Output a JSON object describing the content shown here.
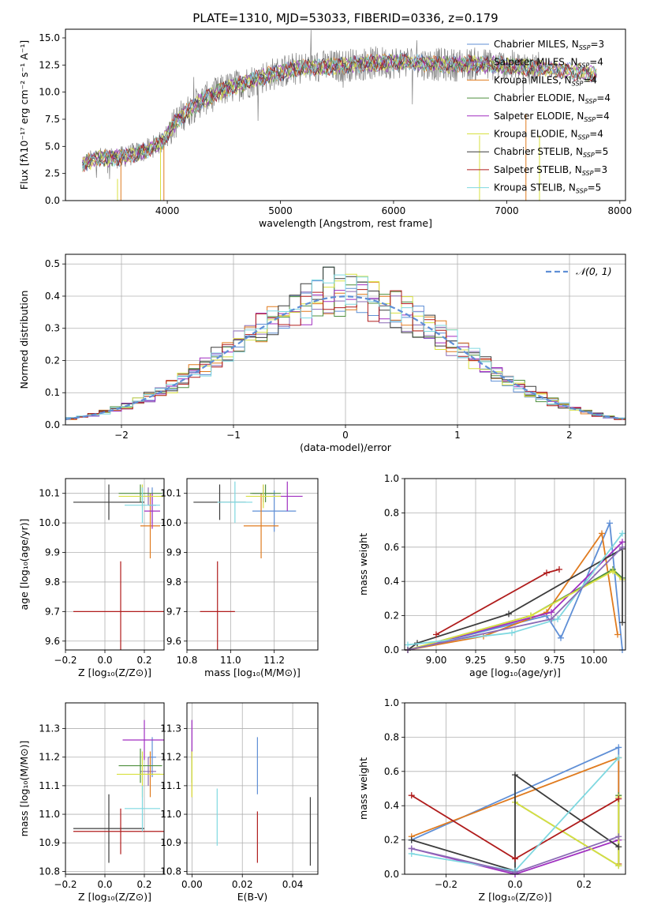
{
  "figure_title": "PLATE=1310, MJD=53033, FIBERID=0336, z=0.179",
  "series_colors": {
    "Chabrier MILES": "#5f8fd6",
    "Salpeter MILES": "#8b6bb5",
    "Kroupa MILES": "#e07b1f",
    "Chabrier ELODIE": "#4f8f3f",
    "Salpeter ELODIE": "#a02fc0",
    "Kroupa ELODIE": "#d8e040",
    "Chabrier STELIB": "#3c3c3c",
    "Salpeter STELIB": "#b01c1c",
    "Kroupa STELIB": "#7fd8e0"
  },
  "chart_data": [
    {
      "id": "spectrum",
      "type": "line",
      "xlabel": "wavelength [Angstrom, rest frame]",
      "ylabel": "Flux [fλ10⁻¹⁷ erg cm⁻² s⁻¹ A⁻¹]",
      "xlim": [
        3100,
        8050
      ],
      "ylim": [
        0,
        15.8
      ],
      "xticks": [
        "4000",
        "5000",
        "6000",
        "7000",
        "8000"
      ],
      "yticks": [
        "0.0",
        "2.5",
        "5.0",
        "7.5",
        "10.0",
        "12.5",
        "15.0"
      ],
      "grid": false,
      "legend_position": "top-right",
      "legend": [
        {
          "name": "Chabrier MILES",
          "nssp": "3"
        },
        {
          "name": "Salpeter MILES",
          "nssp": "4"
        },
        {
          "name": "Kroupa MILES",
          "nssp": "4"
        },
        {
          "name": "Chabrier ELODIE",
          "nssp": "4"
        },
        {
          "name": "Salpeter ELODIE",
          "nssp": "4"
        },
        {
          "name": "Kroupa ELODIE",
          "nssp": "4"
        },
        {
          "name": "Chabrier STELIB",
          "nssp": "5"
        },
        {
          "name": "Salpeter STELIB",
          "nssp": "3"
        },
        {
          "name": "Kroupa STELIB",
          "nssp": "5"
        }
      ],
      "legend_suffix": "SSP",
      "observed_color": "#808080",
      "observed_range": [
        3250,
        7300
      ],
      "continuum": {
        "x": [
          3250,
          3400,
          3600,
          3800,
          3950,
          4100,
          4300,
          4500,
          4700,
          4900,
          5100,
          5300,
          5500,
          5700,
          5900,
          6100,
          6300,
          6500,
          6700,
          6900,
          7100,
          7300,
          7500,
          7800
        ],
        "y": [
          3.4,
          3.9,
          4.0,
          4.6,
          5.4,
          7.6,
          9.2,
          10.2,
          10.9,
          11.6,
          12.1,
          12.3,
          12.4,
          12.6,
          12.7,
          12.8,
          12.6,
          12.5,
          12.6,
          12.5,
          12.3,
          12.2,
          12.0,
          11.6
        ]
      },
      "model_range": [
        3250,
        7800
      ]
    },
    {
      "id": "residual_hist",
      "type": "histogram",
      "xlabel": "(data-model)/error",
      "ylabel": "Normed distribution",
      "xlim": [
        -2.5,
        2.5
      ],
      "ylim": [
        0,
        0.53
      ],
      "xticks": [
        "−2",
        "−1",
        "0",
        "1",
        "2"
      ],
      "yticks": [
        "0.0",
        "0.1",
        "0.2",
        "0.3",
        "0.4",
        "0.5"
      ],
      "grid": true,
      "legend_position": "top-right",
      "reference_curve": {
        "label": "𝒩(0, 1)",
        "mean": 0,
        "sigma": 1,
        "color": "#5f8fd6"
      },
      "bin_width": 0.1
    },
    {
      "id": "age_vs_z",
      "type": "errorbar",
      "xlabel": "Z [log₁₀(Z/Z⊙)]",
      "ylabel": "age  [log₁₀(age/yr)]",
      "xlim": [
        -0.2,
        0.3
      ],
      "ylim": [
        9.57,
        10.15
      ],
      "xticks": [
        [
          "−0.2",
          -0.2
        ],
        [
          "0.0",
          0.0
        ],
        [
          "0.2",
          0.2
        ]
      ],
      "yticks": [
        [
          "9.6",
          9.6
        ],
        [
          "9.7",
          9.7
        ],
        [
          "9.8",
          9.8
        ],
        [
          "9.9",
          9.9
        ],
        [
          "10.0",
          10.0
        ],
        [
          "10.1",
          10.1
        ]
      ],
      "grid": true,
      "points": [
        {
          "series": "Chabrier MILES",
          "x": 0.24,
          "xerr": 0.02,
          "y": 10.06,
          "yerr": 0.06
        },
        {
          "series": "Salpeter MILES",
          "x": 0.22,
          "xerr": 0.02,
          "y": 10.09,
          "yerr": 0.03
        },
        {
          "series": "Kroupa MILES",
          "x": 0.23,
          "xerr": 0.05,
          "y": 9.99,
          "yerr": 0.11
        },
        {
          "series": "Chabrier ELODIE",
          "x": 0.18,
          "xerr": 0.11,
          "y": 10.1,
          "yerr": 0.03
        },
        {
          "series": "Salpeter ELODIE",
          "x": 0.24,
          "xerr": 0.04,
          "y": 10.04,
          "yerr": 0.06
        },
        {
          "series": "Kroupa ELODIE",
          "x": 0.19,
          "xerr": 0.12,
          "y": 10.09,
          "yerr": 0.04
        },
        {
          "series": "Chabrier STELIB",
          "x": 0.02,
          "xerr": 0.18,
          "y": 10.07,
          "yerr": 0.06
        },
        {
          "series": "Salpeter STELIB",
          "x": 0.08,
          "xerr": 0.24,
          "y": 9.7,
          "yerr": 0.17
        },
        {
          "series": "Kroupa STELIB",
          "x": 0.19,
          "xerr": 0.09,
          "y": 10.06,
          "yerr": 0.06
        }
      ]
    },
    {
      "id": "age_vs_mass",
      "type": "errorbar",
      "xlabel": "mass [log₁₀(M/M⊙)]",
      "ylabel": "",
      "xlim": [
        10.8,
        11.4
      ],
      "ylim": [
        9.57,
        10.15
      ],
      "xticks": [
        [
          "10.8",
          10.8
        ],
        [
          "11.0",
          11.0
        ],
        [
          "11.2",
          11.2
        ]
      ],
      "yticks": [
        [
          "9.6",
          9.6
        ],
        [
          "9.7",
          9.7
        ],
        [
          "9.8",
          9.8
        ],
        [
          "9.9",
          9.9
        ],
        [
          "10.0",
          10.0
        ],
        [
          "10.1",
          10.1
        ]
      ],
      "grid": true,
      "points": [
        {
          "series": "Chabrier MILES",
          "x": 11.2,
          "xerr": 0.1,
          "y": 10.04,
          "yerr": 0.07
        },
        {
          "series": "Salpeter MILES",
          "x": 11.15,
          "xerr": 0.05,
          "y": 10.1,
          "yerr": 0.03
        },
        {
          "series": "Kroupa MILES",
          "x": 11.14,
          "xerr": 0.08,
          "y": 9.99,
          "yerr": 0.11
        },
        {
          "series": "Chabrier ELODIE",
          "x": 11.16,
          "xerr": 0.07,
          "y": 10.1,
          "yerr": 0.03
        },
        {
          "series": "Salpeter ELODIE",
          "x": 11.26,
          "xerr": 0.07,
          "y": 10.09,
          "yerr": 0.05
        },
        {
          "series": "Kroupa ELODIE",
          "x": 11.15,
          "xerr": 0.08,
          "y": 10.09,
          "yerr": 0.04
        },
        {
          "series": "Chabrier STELIB",
          "x": 10.95,
          "xerr": 0.12,
          "y": 10.07,
          "yerr": 0.06
        },
        {
          "series": "Salpeter STELIB",
          "x": 10.94,
          "xerr": 0.08,
          "y": 9.7,
          "yerr": 0.17
        },
        {
          "series": "Kroupa STELIB",
          "x": 11.02,
          "xerr": 0.08,
          "y": 10.07,
          "yerr": 0.07
        }
      ]
    },
    {
      "id": "mass_weight_vs_age",
      "type": "line",
      "xlabel": "age  [log₁₀(age/yr)]",
      "ylabel": "mass weight",
      "xlim": [
        8.8,
        10.2
      ],
      "ylim": [
        0,
        1.0
      ],
      "xticks": [
        [
          "9.00",
          9.0
        ],
        [
          "9.25",
          9.25
        ],
        [
          "9.50",
          9.5
        ],
        [
          "9.75",
          9.75
        ],
        [
          "10.00",
          10.0
        ]
      ],
      "yticks": [
        [
          "0.0",
          0.0
        ],
        [
          "0.2",
          0.2
        ],
        [
          "0.4",
          0.4
        ],
        [
          "0.6",
          0.6
        ],
        [
          "0.8",
          0.8
        ],
        [
          "1.0",
          1.0
        ]
      ],
      "grid": true,
      "series": [
        {
          "name": "Chabrier MILES",
          "x": [
            8.82,
            9.7,
            9.79,
            10.1,
            10.18
          ],
          "y": [
            0.0,
            0.2,
            0.07,
            0.74,
            0.0
          ]
        },
        {
          "name": "Kroupa MILES",
          "x": [
            8.82,
            9.3,
            9.7,
            10.05,
            10.15
          ],
          "y": [
            0.0,
            0.08,
            0.22,
            0.68,
            0.09
          ]
        },
        {
          "name": "Chabrier ELODIE",
          "x": [
            8.82,
            9.6,
            10.12,
            10.18
          ],
          "y": [
            0.0,
            0.2,
            0.47,
            0.42
          ]
        },
        {
          "name": "Salpeter ELODIE",
          "x": [
            8.82,
            9.73,
            10.18
          ],
          "y": [
            0.0,
            0.22,
            0.63
          ]
        },
        {
          "name": "Kroupa ELODIE",
          "x": [
            8.82,
            9.6,
            10.12,
            10.18
          ],
          "y": [
            0.0,
            0.2,
            0.46,
            0.41
          ]
        },
        {
          "name": "Chabrier STELIB",
          "x": [
            8.82,
            8.88,
            9.46,
            10.18,
            10.18
          ],
          "y": [
            0.0,
            0.04,
            0.21,
            0.59,
            0.16
          ]
        },
        {
          "name": "Salpeter STELIB",
          "x": [
            9.0,
            9.7,
            9.78
          ],
          "y": [
            0.09,
            0.45,
            0.47
          ]
        },
        {
          "name": "Kroupa STELIB",
          "x": [
            8.82,
            9.48,
            9.77,
            10.18
          ],
          "y": [
            0.03,
            0.1,
            0.18,
            0.68
          ]
        },
        {
          "name": "Salpeter MILES",
          "x": [
            8.82,
            9.73,
            10.18
          ],
          "y": [
            0.0,
            0.18,
            0.6
          ]
        }
      ]
    },
    {
      "id": "mass_vs_z",
      "type": "errorbar",
      "xlabel": "Z [log₁₀(Z/Z⊙)]",
      "ylabel": "mass [log₁₀(M/M⊙)]",
      "xlim": [
        -0.2,
        0.3
      ],
      "ylim": [
        10.79,
        11.39
      ],
      "xticks": [
        [
          "−0.2",
          -0.2
        ],
        [
          "0.0",
          0.0
        ],
        [
          "0.2",
          0.2
        ]
      ],
      "yticks": [
        [
          "10.8",
          10.8
        ],
        [
          "10.9",
          10.9
        ],
        [
          "11.0",
          11.0
        ],
        [
          "11.1",
          11.1
        ],
        [
          "11.2",
          11.2
        ],
        [
          "11.3",
          11.3
        ]
      ],
      "grid": true,
      "points": [
        {
          "series": "Chabrier MILES",
          "x": 0.24,
          "xerr": 0.02,
          "y": 11.2,
          "yerr": 0.07
        },
        {
          "series": "Salpeter MILES",
          "x": 0.22,
          "xerr": 0.04,
          "y": 11.15,
          "yerr": 0.05
        },
        {
          "series": "Kroupa MILES",
          "x": 0.23,
          "xerr": 0.05,
          "y": 11.14,
          "yerr": 0.08
        },
        {
          "series": "Chabrier ELODIE",
          "x": 0.18,
          "xerr": 0.11,
          "y": 11.17,
          "yerr": 0.06
        },
        {
          "series": "Salpeter ELODIE",
          "x": 0.2,
          "xerr": 0.11,
          "y": 11.26,
          "yerr": 0.07
        },
        {
          "series": "Kroupa ELODIE",
          "x": 0.19,
          "xerr": 0.13,
          "y": 11.14,
          "yerr": 0.08
        },
        {
          "series": "Chabrier STELIB",
          "x": 0.02,
          "xerr": 0.18,
          "y": 10.95,
          "yerr": 0.12
        },
        {
          "series": "Salpeter STELIB",
          "x": 0.08,
          "xerr": 0.24,
          "y": 10.94,
          "yerr": 0.08
        },
        {
          "series": "Kroupa STELIB",
          "x": 0.19,
          "xerr": 0.09,
          "y": 11.02,
          "yerr": 0.08
        }
      ]
    },
    {
      "id": "mass_vs_ebv",
      "type": "errorbar",
      "xlabel": "E(B-V)",
      "ylabel": "",
      "xlim": [
        -0.002,
        0.05
      ],
      "ylim": [
        10.79,
        11.39
      ],
      "xticks": [
        [
          "0.00",
          0.0
        ],
        [
          "0.02",
          0.02
        ],
        [
          "0.04",
          0.04
        ]
      ],
      "yticks": [
        [
          "10.8",
          10.8
        ],
        [
          "10.9",
          10.9
        ],
        [
          "11.0",
          11.0
        ],
        [
          "11.1",
          11.1
        ],
        [
          "11.2",
          11.2
        ],
        [
          "11.3",
          11.3
        ]
      ],
      "grid": true,
      "points": [
        {
          "series": "Chabrier MILES",
          "x": 0.026,
          "xerr": 0.0,
          "y": 11.17,
          "yerr": 0.1
        },
        {
          "series": "Salpeter MILES",
          "x": 0.0,
          "xerr": 0.0,
          "y": 11.28,
          "yerr": 0.05
        },
        {
          "series": "Kroupa MILES",
          "x": 0.0,
          "xerr": 0.0,
          "y": 11.14,
          "yerr": 0.08
        },
        {
          "series": "Chabrier ELODIE",
          "x": 0.0,
          "xerr": 0.0,
          "y": 11.17,
          "yerr": 0.06
        },
        {
          "series": "Salpeter ELODIE",
          "x": 0.0,
          "xerr": 0.0,
          "y": 11.26,
          "yerr": 0.07
        },
        {
          "series": "Kroupa ELODIE",
          "x": 0.0,
          "xerr": 0.0,
          "y": 11.14,
          "yerr": 0.08
        },
        {
          "series": "Chabrier STELIB",
          "x": 0.047,
          "xerr": 0.0,
          "y": 10.94,
          "yerr": 0.12
        },
        {
          "series": "Salpeter STELIB",
          "x": 0.026,
          "xerr": 0.0,
          "y": 10.92,
          "yerr": 0.09
        },
        {
          "series": "Kroupa STELIB",
          "x": 0.01,
          "xerr": 0.0,
          "y": 10.99,
          "yerr": 0.1
        }
      ]
    },
    {
      "id": "mass_weight_vs_z",
      "type": "line",
      "xlabel": "Z [log₁₀(Z/Z⊙)]",
      "ylabel": "mass weight",
      "xlim": [
        -0.32,
        0.32
      ],
      "ylim": [
        0,
        1.0
      ],
      "xticks": [
        [
          "−0.2",
          -0.2
        ],
        [
          "0.0",
          0.0
        ],
        [
          "0.2",
          0.2
        ]
      ],
      "yticks": [
        [
          "0.0",
          0.0
        ],
        [
          "0.2",
          0.2
        ],
        [
          "0.4",
          0.4
        ],
        [
          "0.6",
          0.6
        ],
        [
          "0.8",
          0.8
        ],
        [
          "1.0",
          1.0
        ]
      ],
      "grid": true,
      "series": [
        {
          "name": "Chabrier MILES",
          "x": [
            -0.3,
            0.3,
            0.3
          ],
          "y": [
            0.2,
            0.74,
            0.06
          ]
        },
        {
          "name": "Kroupa MILES",
          "x": [
            -0.3,
            0.3,
            0.3
          ],
          "y": [
            0.22,
            0.68,
            0.06
          ]
        },
        {
          "name": "Chabrier ELODIE",
          "x": [
            0.0,
            0.3,
            0.3
          ],
          "y": [
            0.42,
            0.05,
            0.46
          ]
        },
        {
          "name": "Salpeter ELODIE",
          "x": [
            -0.3,
            0.0,
            0.3
          ],
          "y": [
            0.15,
            0.0,
            0.2
          ]
        },
        {
          "name": "Kroupa ELODIE",
          "x": [
            0.0,
            0.3,
            0.3
          ],
          "y": [
            0.42,
            0.05,
            0.45
          ]
        },
        {
          "name": "Chabrier STELIB",
          "x": [
            -0.3,
            0.0,
            0.0,
            0.3
          ],
          "y": [
            0.2,
            0.02,
            0.58,
            0.16
          ]
        },
        {
          "name": "Salpeter STELIB",
          "x": [
            -0.3,
            0.0,
            0.3
          ],
          "y": [
            0.46,
            0.09,
            0.44
          ]
        },
        {
          "name": "Kroupa STELIB",
          "x": [
            -0.3,
            0.0,
            0.3
          ],
          "y": [
            0.12,
            0.02,
            0.68
          ]
        },
        {
          "name": "Salpeter MILES",
          "x": [
            -0.3,
            0.0,
            0.3
          ],
          "y": [
            0.15,
            0.01,
            0.22
          ]
        }
      ]
    }
  ]
}
